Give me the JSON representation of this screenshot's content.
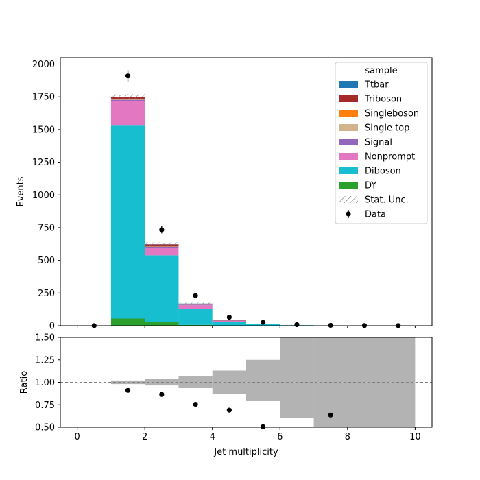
{
  "chart_data": [
    {
      "type": "bar",
      "stacked": true,
      "ylabel": "Events",
      "bin_edges": [
        0,
        1,
        2,
        3,
        4,
        5,
        6,
        7,
        8,
        9,
        10
      ],
      "xlim": [
        -0.5,
        10.5
      ],
      "ylim": [
        0,
        2050
      ],
      "yticks": [
        0,
        250,
        500,
        750,
        1000,
        1250,
        1500,
        1750,
        2000
      ],
      "xticks": [
        0,
        2,
        4,
        6,
        8,
        10
      ],
      "legend": {
        "title": "sample",
        "placement": "top-right",
        "entries": [
          {
            "label": "Ttbar",
            "color": "#1f77b4",
            "kind": "patch"
          },
          {
            "label": "Triboson",
            "color": "#a52a2a",
            "kind": "patch"
          },
          {
            "label": "Singleboson",
            "color": "#ff7f0e",
            "kind": "patch"
          },
          {
            "label": "Single top",
            "color": "#d2b48c",
            "kind": "patch"
          },
          {
            "label": "Signal",
            "color": "#9467bd",
            "kind": "patch"
          },
          {
            "label": "Nonprompt",
            "color": "#e377c2",
            "kind": "patch"
          },
          {
            "label": "Diboson",
            "color": "#17becf",
            "kind": "patch"
          },
          {
            "label": "DY",
            "color": "#2ca02c",
            "kind": "patch"
          },
          {
            "label": "Stat. Unc.",
            "color": "#888888",
            "kind": "hatch"
          },
          {
            "label": "Data",
            "color": "#000000",
            "kind": "marker"
          }
        ]
      },
      "series": [
        {
          "name": "DY",
          "color": "#2ca02c",
          "values": [
            0,
            55,
            28,
            6,
            2,
            1,
            0,
            0,
            0,
            0
          ]
        },
        {
          "name": "Diboson",
          "color": "#17becf",
          "values": [
            0,
            1475,
            510,
            125,
            28,
            10,
            4,
            2,
            0,
            0
          ]
        },
        {
          "name": "Nonprompt",
          "color": "#e377c2",
          "values": [
            0,
            185,
            55,
            25,
            7,
            2,
            0,
            0,
            0,
            0
          ]
        },
        {
          "name": "Signal",
          "color": "#9467bd",
          "values": [
            0,
            12,
            10,
            5,
            2,
            0,
            0,
            0,
            0,
            0
          ]
        },
        {
          "name": "Single top",
          "color": "#d2b48c",
          "values": [
            0,
            2,
            2,
            1,
            0,
            0,
            0,
            0,
            0,
            0
          ]
        },
        {
          "name": "Singleboson",
          "color": "#ff7f0e",
          "values": [
            0,
            1,
            1,
            0,
            0,
            0,
            0,
            0,
            0,
            0
          ]
        },
        {
          "name": "Triboson",
          "color": "#a52a2a",
          "values": [
            0,
            20,
            16,
            6,
            2,
            0,
            0,
            0,
            0,
            0
          ]
        },
        {
          "name": "Ttbar",
          "color": "#1f77b4",
          "values": [
            0,
            0,
            1,
            1,
            0,
            0,
            0,
            0,
            0,
            0
          ]
        }
      ],
      "stat_unc": [
        0,
        20,
        14,
        7,
        3,
        2,
        1,
        1,
        0,
        0
      ],
      "data_points": {
        "name": "Data",
        "x": [
          0.5,
          1.5,
          2.5,
          3.5,
          4.5,
          5.5,
          6.5,
          7.5,
          8.5,
          9.5
        ],
        "y": [
          0,
          1910,
          733,
          230,
          65,
          25,
          8,
          3,
          1,
          1
        ],
        "err": [
          0,
          44,
          27,
          15,
          8,
          5,
          3,
          2,
          1,
          1
        ]
      }
    },
    {
      "type": "bar",
      "xlabel": "Jet multiplicity",
      "ylabel": "Ratio",
      "xlim": [
        -0.5,
        10.5
      ],
      "ylim": [
        0.5,
        1.5
      ],
      "yticks": [
        "0.50",
        "0.75",
        "1.00",
        "1.25",
        "1.50"
      ],
      "xticks": [
        0,
        2,
        4,
        6,
        8,
        10
      ],
      "reference_line": 1.0,
      "unc_band": {
        "color": "#b3b3b3",
        "bins": [
          {
            "x0": 1,
            "x1": 2,
            "lo": 0.98,
            "hi": 1.02
          },
          {
            "x0": 2,
            "x1": 3,
            "lo": 0.965,
            "hi": 1.035
          },
          {
            "x0": 3,
            "x1": 4,
            "lo": 0.935,
            "hi": 1.065
          },
          {
            "x0": 4,
            "x1": 5,
            "lo": 0.87,
            "hi": 1.13
          },
          {
            "x0": 5,
            "x1": 6,
            "lo": 0.79,
            "hi": 1.25
          },
          {
            "x0": 6,
            "x1": 7,
            "lo": 0.6,
            "hi": 1.5
          },
          {
            "x0": 7,
            "x1": 10,
            "lo": 0.5,
            "hi": 1.5
          }
        ]
      },
      "ratio_points": {
        "x": [
          1.5,
          2.5,
          3.5,
          4.5,
          5.5,
          7.5
        ],
        "y": [
          0.91,
          0.865,
          0.755,
          0.69,
          0.505,
          0.635
        ]
      }
    }
  ]
}
